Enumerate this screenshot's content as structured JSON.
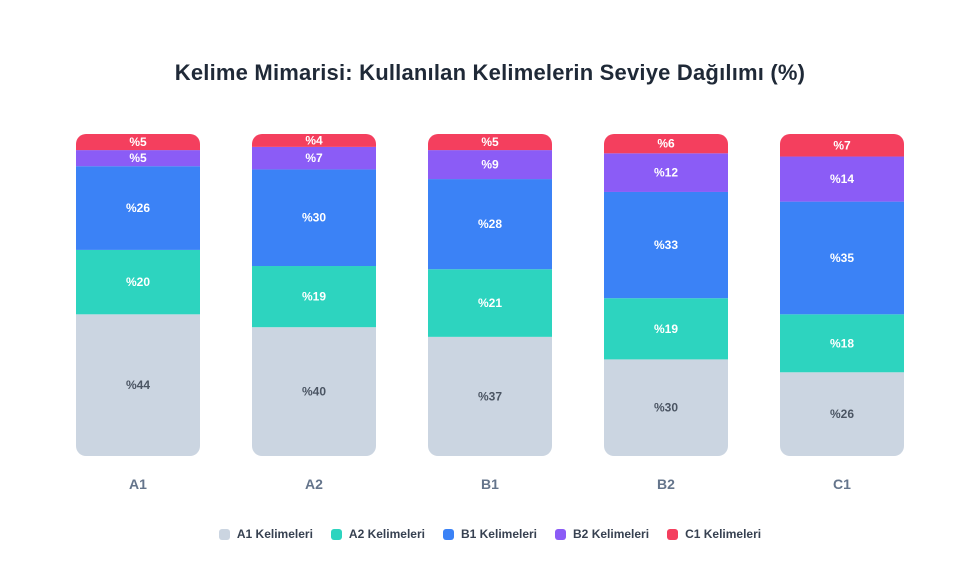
{
  "chart_data": {
    "type": "bar",
    "stacked": true,
    "title": "Kelime Mimarisi: Kullanılan Kelimelerin Seviye Dağılımı (%)",
    "categories": [
      "A1",
      "A2",
      "B1",
      "B2",
      "C1"
    ],
    "value_prefix": "%",
    "ylim": [
      0,
      100
    ],
    "grid": false,
    "legend_position": "bottom",
    "series": [
      {
        "name": "A1 Kelimeleri",
        "color": "#cbd5e1",
        "label_color": "#4b5563",
        "values": [
          44,
          40,
          37,
          30,
          26
        ]
      },
      {
        "name": "A2 Kelimeleri",
        "color": "#2dd4bf",
        "label_color": "#ffffff",
        "values": [
          20,
          19,
          21,
          19,
          18
        ]
      },
      {
        "name": "B1 Kelimeleri",
        "color": "#3b82f6",
        "label_color": "#ffffff",
        "values": [
          26,
          30,
          28,
          33,
          35
        ]
      },
      {
        "name": "B2 Kelimeleri",
        "color": "#8b5cf6",
        "label_color": "#ffffff",
        "values": [
          5,
          7,
          9,
          12,
          14
        ]
      },
      {
        "name": "C1 Kelimeleri",
        "color": "#f43f5e",
        "label_color": "#ffffff",
        "values": [
          5,
          4,
          5,
          6,
          7
        ]
      }
    ]
  }
}
